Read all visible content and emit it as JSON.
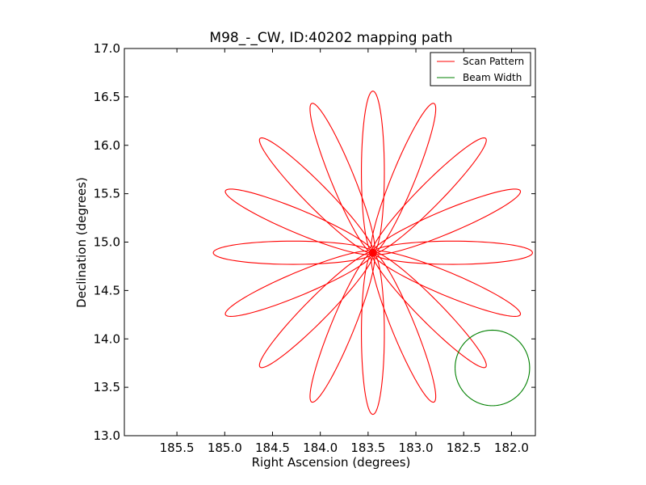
{
  "chart_data": {
    "type": "line",
    "title": "M98_-_CW, ID:40202 mapping path",
    "xlabel": "Right Ascension (degrees)",
    "ylabel": "Declination (degrees)",
    "xlim": [
      186.05,
      181.75
    ],
    "ylim": [
      13.0,
      17.0
    ],
    "x_inverted": true,
    "xticks": [
      185.5,
      185.0,
      184.5,
      184.0,
      183.5,
      183.0,
      182.5,
      182.0
    ],
    "xtick_labels": [
      "185.5",
      "185.0",
      "184.5",
      "184.0",
      "183.5",
      "183.0",
      "182.5",
      "182.0"
    ],
    "yticks": [
      13.0,
      13.5,
      14.0,
      14.5,
      15.0,
      15.5,
      16.0,
      16.5,
      17.0
    ],
    "ytick_labels": [
      "13.0",
      "13.5",
      "14.0",
      "14.5",
      "15.0",
      "15.5",
      "16.0",
      "16.5",
      "17.0"
    ],
    "grid": false,
    "legend_position": "top-right",
    "series": [
      {
        "name": "Scan Pattern",
        "color": "#ff0000",
        "shape": "rosette",
        "center": [
          183.45,
          14.89
        ],
        "petal_count": 16,
        "petal_length_deg": 1.67,
        "petal_half_width_deg": 0.12
      },
      {
        "name": "Beam Width",
        "color": "#008000",
        "shape": "circle",
        "center": [
          182.2,
          13.7
        ],
        "radius_deg": 0.39
      }
    ]
  }
}
